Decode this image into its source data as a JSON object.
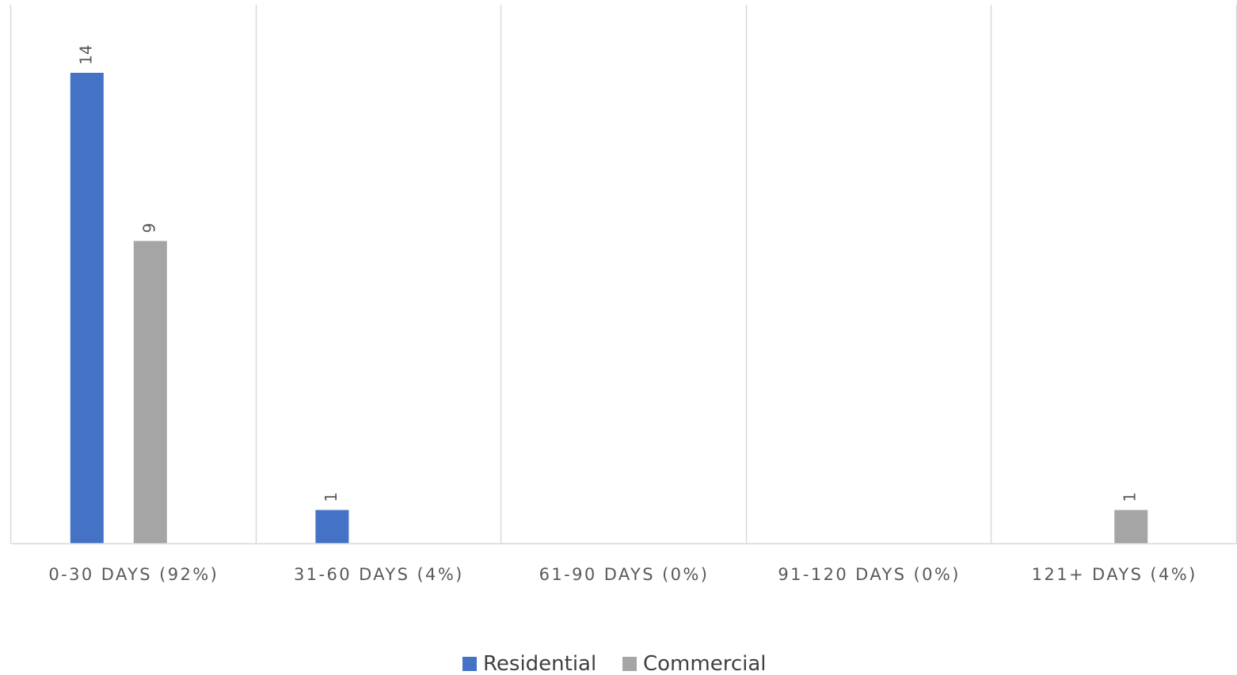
{
  "chart_data": {
    "type": "bar",
    "title": "",
    "xlabel": "",
    "ylabel": "",
    "categories": [
      "0-30 DAYS (92%)",
      "31-60 DAYS (4%)",
      "61-90 DAYS (0%)",
      "91-120 DAYS (0%)",
      "121+ DAYS (4%)"
    ],
    "series": [
      {
        "name": "Residential",
        "color": "#4472C4",
        "values": [
          14,
          1,
          0,
          0,
          0
        ]
      },
      {
        "name": "Commercial",
        "color": "#A5A5A5",
        "values": [
          9,
          0,
          0,
          0,
          1
        ]
      }
    ],
    "ylim": [
      0,
      16
    ],
    "grid": "vertical",
    "legend": "bottom-center",
    "data_labels": true,
    "y_axis_visible": false
  }
}
